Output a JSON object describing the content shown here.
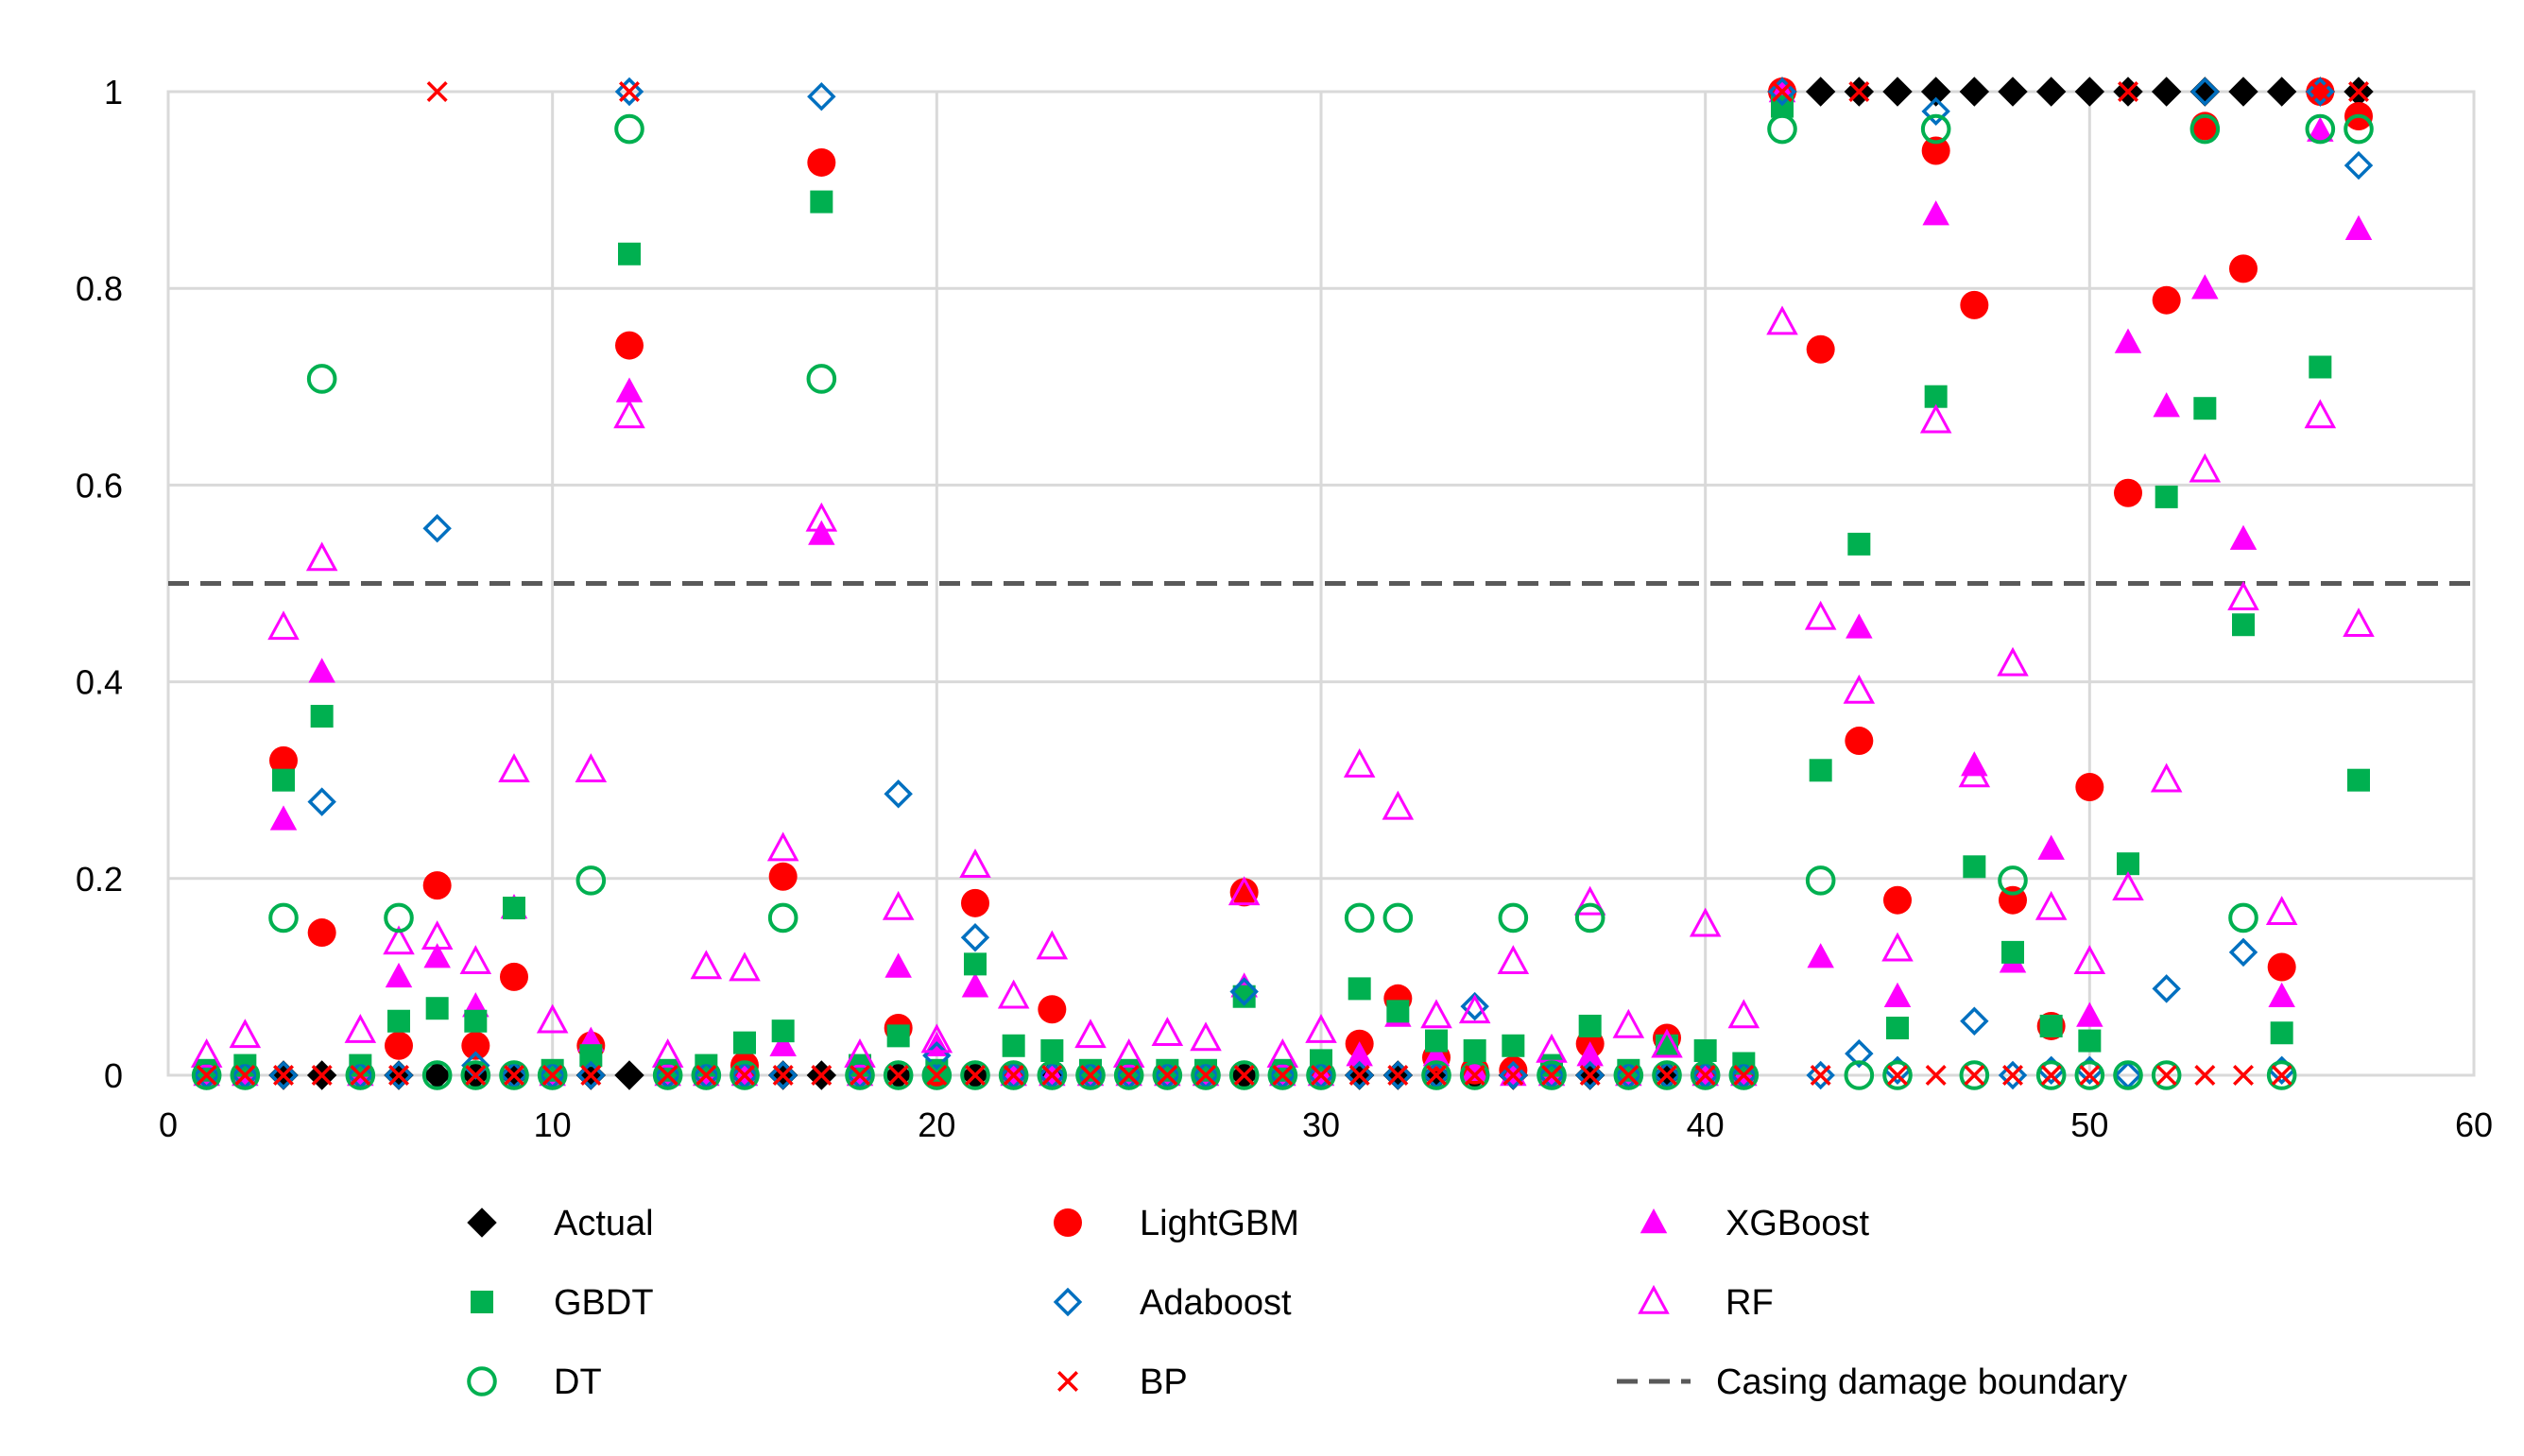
{
  "chart_data": {
    "type": "scatter",
    "title": "",
    "xlabel": "",
    "ylabel": "",
    "xlim": [
      0,
      60
    ],
    "ylim": [
      0,
      1
    ],
    "x_ticks": [
      0,
      10,
      20,
      30,
      40,
      50,
      60
    ],
    "y_ticks": [
      0,
      0.2,
      0.4,
      0.6,
      0.8,
      1
    ],
    "x_tick_labels": [
      "0",
      "10",
      "20",
      "30",
      "40",
      "50",
      "60"
    ],
    "y_tick_labels": [
      "0",
      "0.2",
      "0.4",
      "0.6",
      "0.8",
      "1"
    ],
    "grid": true,
    "reference_line": {
      "name": "Casing damage boundary",
      "y": 0.5,
      "color": "#595959",
      "style": "dashed"
    },
    "series": [
      {
        "name": "Actual",
        "marker": "diamond-filled",
        "color": "#000000",
        "x": [
          1,
          2,
          3,
          4,
          5,
          6,
          7,
          8,
          9,
          10,
          11,
          12,
          13,
          14,
          15,
          16,
          17,
          18,
          19,
          20,
          21,
          22,
          23,
          24,
          25,
          26,
          27,
          28,
          29,
          30,
          31,
          32,
          33,
          34,
          35,
          36,
          37,
          38,
          39,
          40,
          41,
          42,
          43,
          44,
          45,
          46,
          47,
          48,
          49,
          50,
          51,
          52,
          53,
          54,
          55,
          56,
          57
        ],
        "y": [
          0,
          0,
          0,
          0,
          0,
          0,
          0,
          0,
          0,
          0,
          0,
          0,
          0,
          0,
          0,
          0,
          0,
          0,
          0,
          0,
          0,
          0,
          0,
          0,
          0,
          0,
          0,
          0,
          0,
          0,
          0,
          0,
          0,
          0,
          0,
          0,
          0,
          0,
          0,
          0,
          0,
          1,
          1,
          1,
          1,
          1,
          1,
          1,
          1,
          1,
          1,
          1,
          1,
          1,
          1,
          1,
          1
        ]
      },
      {
        "name": "LightGBM",
        "marker": "circle-filled",
        "color": "#ff0000",
        "x": [
          1,
          2,
          3,
          4,
          5,
          6,
          7,
          8,
          9,
          10,
          11,
          12,
          13,
          14,
          15,
          16,
          17,
          18,
          19,
          20,
          21,
          22,
          23,
          24,
          25,
          26,
          27,
          28,
          29,
          30,
          31,
          32,
          33,
          34,
          35,
          36,
          37,
          38,
          39,
          40,
          41,
          42,
          43,
          44,
          45,
          46,
          47,
          48,
          49,
          50,
          51,
          52,
          53,
          54,
          55,
          56,
          57
        ],
        "y": [
          0,
          0,
          0.32,
          0.145,
          0,
          0.03,
          0.193,
          0.03,
          0.1,
          0,
          0.03,
          0.742,
          0,
          0,
          0.01,
          0.202,
          0.928,
          0,
          0.048,
          0,
          0.175,
          0,
          0.067,
          0,
          0,
          0,
          0,
          0.186,
          0,
          0,
          0.032,
          0.078,
          0.018,
          0.005,
          0.005,
          0,
          0.032,
          0,
          0.038,
          0,
          0,
          1,
          0.738,
          0.34,
          0.178,
          0.94,
          0.783,
          0.178,
          0.05,
          0.293,
          0.592,
          0.788,
          0.965,
          0.82,
          0.11,
          1,
          0.975
        ]
      },
      {
        "name": "XGBoost",
        "marker": "triangle-filled",
        "color": "#ff00ff",
        "x": [
          1,
          2,
          3,
          4,
          5,
          6,
          7,
          8,
          9,
          10,
          11,
          12,
          13,
          14,
          15,
          16,
          17,
          18,
          19,
          20,
          21,
          22,
          23,
          24,
          25,
          26,
          27,
          28,
          29,
          30,
          31,
          32,
          33,
          34,
          35,
          36,
          37,
          38,
          39,
          40,
          41,
          42,
          43,
          44,
          45,
          46,
          47,
          48,
          49,
          50,
          51,
          52,
          53,
          54,
          55,
          56,
          57
        ],
        "y": [
          0,
          0,
          0.26,
          0.41,
          0,
          0.1,
          0.12,
          0.07,
          0.17,
          0,
          0.035,
          0.695,
          0,
          0,
          0,
          0.03,
          0.55,
          0,
          0.11,
          0.03,
          0.09,
          0,
          0,
          0,
          0,
          0,
          0,
          0.09,
          0,
          0,
          0.02,
          0.06,
          0.02,
          0.005,
          0,
          0,
          0.02,
          0,
          0.03,
          0,
          0,
          1,
          0.12,
          0.455,
          0.08,
          0.875,
          0.315,
          0.115,
          0.23,
          0.06,
          0.745,
          0.68,
          0.8,
          0.545,
          0.08,
          0.96,
          0.86
        ]
      },
      {
        "name": "GBDT",
        "marker": "square-filled",
        "color": "#00b050",
        "x": [
          1,
          2,
          3,
          4,
          5,
          6,
          7,
          8,
          9,
          10,
          11,
          12,
          13,
          14,
          15,
          16,
          17,
          18,
          19,
          20,
          21,
          22,
          23,
          24,
          25,
          26,
          27,
          28,
          29,
          30,
          31,
          32,
          33,
          34,
          35,
          36,
          37,
          38,
          39,
          40,
          41,
          42,
          43,
          44,
          45,
          46,
          47,
          48,
          49,
          50,
          51,
          52,
          53,
          54,
          55,
          56,
          57
        ],
        "y": [
          0.005,
          0.01,
          0.3,
          0.365,
          0.01,
          0.055,
          0.068,
          0.055,
          0.17,
          0.005,
          0.02,
          0.835,
          0.005,
          0.01,
          0.033,
          0.045,
          0.888,
          0.01,
          0.04,
          0.005,
          0.113,
          0.03,
          0.025,
          0.005,
          0.005,
          0.005,
          0.005,
          0.08,
          0.005,
          0.015,
          0.088,
          0.065,
          0.035,
          0.025,
          0.03,
          0.01,
          0.05,
          0.005,
          0.03,
          0.025,
          0.012,
          0.985,
          0.31,
          0.54,
          0.048,
          0.69,
          0.212,
          0.125,
          0.05,
          0.035,
          0.215,
          0.588,
          0.678,
          0.458,
          0.043,
          0.72,
          0.3
        ]
      },
      {
        "name": "Adaboost",
        "marker": "diamond-open",
        "color": "#0070c0",
        "x": [
          1,
          2,
          3,
          4,
          5,
          6,
          7,
          8,
          9,
          10,
          11,
          12,
          13,
          14,
          15,
          16,
          17,
          18,
          19,
          20,
          21,
          22,
          23,
          24,
          25,
          26,
          27,
          28,
          29,
          30,
          31,
          32,
          33,
          34,
          35,
          36,
          37,
          38,
          39,
          40,
          41,
          42,
          43,
          44,
          45,
          46,
          47,
          48,
          49,
          50,
          51,
          52,
          53,
          54,
          55,
          56,
          57
        ],
        "y": [
          0,
          0,
          0,
          0.278,
          0,
          0,
          0.556,
          0.01,
          0,
          0,
          0,
          1,
          0,
          0,
          0,
          0,
          0.995,
          0,
          0.286,
          0.02,
          0.14,
          0,
          0,
          0,
          0,
          0,
          0,
          0.085,
          0,
          0,
          0,
          0,
          0,
          0.07,
          0,
          0,
          0,
          0,
          0,
          0,
          0,
          1,
          0,
          0.022,
          0.005,
          0.98,
          0.055,
          0,
          0.005,
          0.005,
          0,
          0.088,
          1,
          0.125,
          0.005,
          1,
          0.925
        ]
      },
      {
        "name": "RF",
        "marker": "triangle-open",
        "color": "#ff00ff",
        "x": [
          1,
          2,
          3,
          4,
          5,
          6,
          7,
          8,
          9,
          10,
          11,
          12,
          13,
          14,
          15,
          16,
          17,
          18,
          19,
          20,
          21,
          22,
          23,
          24,
          25,
          26,
          27,
          28,
          29,
          30,
          31,
          32,
          33,
          34,
          35,
          36,
          37,
          38,
          39,
          40,
          41,
          42,
          43,
          44,
          45,
          46,
          47,
          48,
          49,
          50,
          51,
          52,
          53,
          54,
          55,
          56,
          57
        ],
        "y": [
          0.02,
          0.04,
          0.455,
          0.525,
          0.045,
          0.135,
          0.14,
          0.115,
          0.31,
          0.055,
          0.31,
          0.67,
          0.02,
          0.11,
          0.108,
          0.23,
          0.565,
          0.02,
          0.17,
          0.035,
          0.213,
          0.08,
          0.13,
          0.04,
          0.02,
          0.042,
          0.037,
          0.185,
          0.02,
          0.045,
          0.315,
          0.272,
          0.06,
          0.065,
          0.115,
          0.025,
          0.175,
          0.05,
          0.03,
          0.153,
          0.06,
          0.765,
          0.465,
          0.39,
          0.128,
          0.665,
          0.305,
          0.418,
          0.17,
          0.115,
          0.19,
          0.3,
          0.615,
          0.485,
          0.165,
          0.67,
          0.458
        ]
      },
      {
        "name": "DT",
        "marker": "circle-open",
        "color": "#00b050",
        "x": [
          1,
          2,
          3,
          4,
          5,
          6,
          7,
          8,
          9,
          10,
          11,
          12,
          13,
          14,
          15,
          16,
          17,
          18,
          19,
          20,
          21,
          22,
          23,
          24,
          25,
          26,
          27,
          28,
          29,
          30,
          31,
          32,
          33,
          34,
          35,
          36,
          37,
          38,
          39,
          40,
          41,
          42,
          43,
          44,
          45,
          46,
          47,
          48,
          49,
          50,
          51,
          52,
          53,
          54,
          55,
          56,
          57
        ],
        "y": [
          0,
          0,
          0.16,
          0.708,
          0,
          0.16,
          0,
          0,
          0,
          0,
          0.198,
          0.962,
          0,
          0,
          0,
          0.16,
          0.708,
          0,
          0,
          0,
          0,
          0,
          0,
          0,
          0,
          0,
          0,
          0,
          0,
          0,
          0.16,
          0.16,
          0,
          0,
          0.16,
          0,
          0.16,
          0,
          0,
          0,
          0,
          0.962,
          0.198,
          0,
          0,
          0.962,
          0,
          0.198,
          0,
          0,
          0,
          0,
          0.962,
          0.16,
          0,
          0.962,
          0.962
        ]
      },
      {
        "name": "BP",
        "marker": "x",
        "color": "#ff0000",
        "x": [
          1,
          2,
          3,
          4,
          5,
          6,
          7,
          8,
          9,
          10,
          11,
          12,
          13,
          14,
          15,
          16,
          17,
          18,
          19,
          20,
          21,
          22,
          23,
          24,
          25,
          26,
          27,
          28,
          29,
          30,
          31,
          32,
          33,
          34,
          35,
          36,
          37,
          38,
          39,
          40,
          41,
          42,
          43,
          44,
          45,
          46,
          47,
          48,
          49,
          50,
          51,
          52,
          53,
          54,
          55,
          56,
          57
        ],
        "y": [
          0,
          0,
          0,
          0,
          0,
          0,
          1,
          0,
          0,
          0,
          0,
          1,
          0,
          0,
          0,
          0,
          0,
          0,
          0,
          0,
          0,
          0,
          0,
          0,
          0,
          0,
          0,
          0,
          0,
          0,
          0,
          0,
          0,
          0,
          0,
          0,
          0,
          0,
          0,
          0,
          0,
          1,
          0,
          1,
          0,
          0,
          0,
          0,
          0,
          0,
          1,
          0,
          0,
          0,
          0,
          1,
          1
        ]
      }
    ],
    "legend": {
      "placement": "bottom",
      "entries": [
        {
          "label": "Actual",
          "marker": "diamond-filled",
          "color": "#000000"
        },
        {
          "label": "LightGBM",
          "marker": "circle-filled",
          "color": "#ff0000"
        },
        {
          "label": "XGBoost",
          "marker": "triangle-filled",
          "color": "#ff00ff"
        },
        {
          "label": "GBDT",
          "marker": "square-filled",
          "color": "#00b050"
        },
        {
          "label": "Adaboost",
          "marker": "diamond-open",
          "color": "#0070c0"
        },
        {
          "label": "RF",
          "marker": "triangle-open",
          "color": "#ff00ff"
        },
        {
          "label": "DT",
          "marker": "circle-open",
          "color": "#00b050"
        },
        {
          "label": "BP",
          "marker": "x",
          "color": "#ff0000"
        },
        {
          "label": "Casing damage boundary",
          "marker": "dashed-line",
          "color": "#595959"
        }
      ]
    },
    "colors": {
      "gridline": "#d9d9d9",
      "plot_border": "#d9d9d9"
    }
  }
}
